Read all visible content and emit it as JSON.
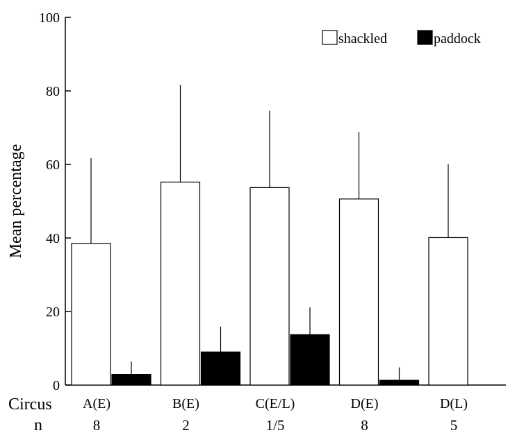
{
  "chart_data": {
    "type": "bar",
    "ylabel": "Mean percentage",
    "ylim": [
      0,
      100
    ],
    "yticks": [
      "0",
      "20",
      "40",
      "60",
      "80",
      "100"
    ],
    "grid": false,
    "legend_position": "top-right",
    "categories": [
      "A(E)",
      "B(E)",
      "C(E/L)",
      "D(E)",
      "D(L)"
    ],
    "row_labels": {
      "categories": "Circus",
      "n": "n"
    },
    "n_values": [
      "8",
      "2",
      "1/5",
      "8",
      "5"
    ],
    "series": [
      {
        "name": "shackled",
        "color": "#ffffff",
        "values": [
          38.5,
          55.2,
          53.7,
          50.6,
          40.1
        ],
        "errors": [
          23.2,
          26.4,
          20.9,
          18.2,
          20.0
        ]
      },
      {
        "name": "paddock",
        "color": "#000000",
        "values": [
          2.9,
          9.0,
          13.7,
          1.3,
          null
        ],
        "errors": [
          3.5,
          6.9,
          7.4,
          3.5,
          null
        ]
      }
    ]
  }
}
